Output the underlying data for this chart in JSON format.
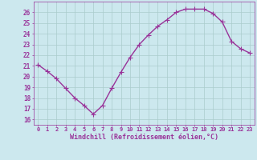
{
  "x": [
    0,
    1,
    2,
    3,
    4,
    5,
    6,
    7,
    8,
    9,
    10,
    11,
    12,
    13,
    14,
    15,
    16,
    17,
    18,
    19,
    20,
    21,
    22,
    23
  ],
  "y": [
    21.1,
    20.5,
    19.8,
    18.9,
    18.0,
    17.3,
    16.5,
    17.3,
    18.9,
    20.4,
    21.8,
    23.0,
    23.9,
    24.7,
    25.3,
    26.0,
    26.3,
    26.3,
    26.3,
    25.9,
    25.1,
    23.3,
    22.6,
    22.2
  ],
  "xlabel": "Windchill (Refroidissement éolien,°C)",
  "ylim": [
    15.5,
    27.0
  ],
  "xlim": [
    -0.5,
    23.5
  ],
  "yticks": [
    16,
    17,
    18,
    19,
    20,
    21,
    22,
    23,
    24,
    25,
    26
  ],
  "xticks": [
    0,
    1,
    2,
    3,
    4,
    5,
    6,
    7,
    8,
    9,
    10,
    11,
    12,
    13,
    14,
    15,
    16,
    17,
    18,
    19,
    20,
    21,
    22,
    23
  ],
  "line_color": "#993399",
  "marker_color": "#993399",
  "bg_color": "#cce8ee",
  "grid_color": "#aacccc",
  "axis_color": "#993399",
  "tick_color": "#993399",
  "label_color": "#993399",
  "marker": "+",
  "linewidth": 1.0,
  "markersize": 4
}
